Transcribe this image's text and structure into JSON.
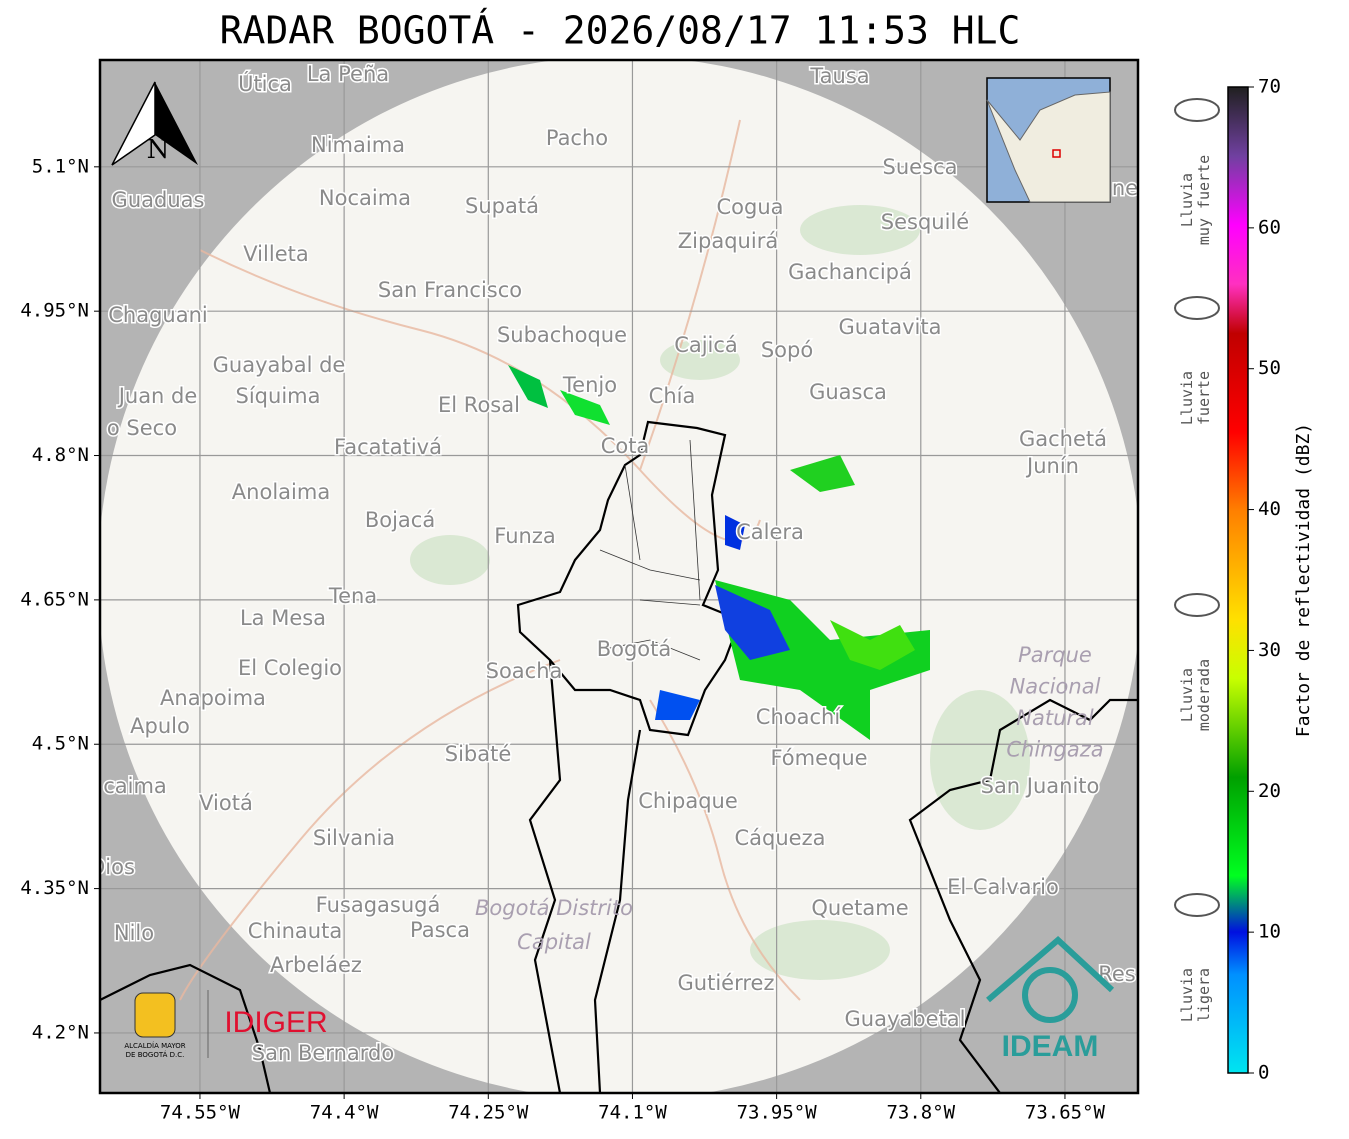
{
  "header": {
    "title": "RADAR BOGOTÁ - 2026/08/17 11:53 HLC"
  },
  "map": {
    "xlim": [
      -74.654,
      -73.574
    ],
    "ylim": [
      4.1376,
      5.211
    ],
    "xticks": [
      {
        "value": -74.55,
        "label": "74.55°W"
      },
      {
        "value": -74.4,
        "label": "74.4°W"
      },
      {
        "value": -74.25,
        "label": "74.25°W"
      },
      {
        "value": -74.1,
        "label": "74.1°W"
      },
      {
        "value": -73.95,
        "label": "73.95°W"
      },
      {
        "value": -73.8,
        "label": "73.8°W"
      },
      {
        "value": -73.65,
        "label": "73.65°W"
      }
    ],
    "yticks": [
      {
        "value": 5.1,
        "label": "5.1°N"
      },
      {
        "value": 4.95,
        "label": "4.95°N"
      },
      {
        "value": 4.8,
        "label": "4.8°N"
      },
      {
        "value": 4.65,
        "label": "4.65°N"
      },
      {
        "value": 4.5,
        "label": "4.5°N"
      },
      {
        "value": 4.35,
        "label": "4.35°N"
      },
      {
        "value": 4.2,
        "label": "4.2°N"
      }
    ],
    "grid": true,
    "places": [
      "Útica",
      "La Peña",
      "Tausa",
      "Pacho",
      "Nimaima",
      "Suesca",
      "Guaduas",
      "Nocaima",
      "Supatá",
      "Cogua",
      "Sesquilé",
      "Zipaquirá",
      "Villeta",
      "Gachancipá",
      "San Francisco",
      "Chaguani",
      "Guatavita",
      "Subachoque",
      "Cajicá",
      "Sopó",
      "Guayabal de",
      "Síquima",
      "Juan de",
      "o Seco",
      "Tenjo",
      "Chía",
      "Guasca",
      "El Rosal",
      "Cota",
      "Facatativá",
      "Gachetá",
      "Junín",
      "Anolaima",
      "Bojacá",
      "Funza",
      "Calera",
      "Tena",
      "La Mesa",
      "Bogotá",
      "El Colegio",
      "Soacha",
      "Anapoima",
      "Apulo",
      "Choachí",
      "Sibaté",
      "Fómeque",
      "San Juanito",
      "caima",
      "Viotá",
      "Chipaque",
      "Silvania",
      "Cáqueza",
      "Dios",
      "El Calvario",
      "Fusagasugá",
      "Quetame",
      "Nilo",
      "Chinauta",
      "Pasca",
      "Arbeláez",
      "Gutiérrez",
      "Res",
      "Guayabetal",
      "San Bernardo",
      "ne"
    ],
    "regions": [
      [
        "Parque",
        "Nacional",
        "Natural",
        "Chingaza"
      ],
      [
        "Bogotá Distrito",
        "Capital"
      ]
    ],
    "compass": "N"
  },
  "colorbar": {
    "label": "Factor de reflectividad (dBZ)",
    "lim": [
      0,
      70
    ],
    "ticks": [
      0,
      10,
      20,
      30,
      40,
      50,
      60,
      70
    ]
  },
  "rain_levels": [
    [
      "Lluvia",
      "muy fuerte"
    ],
    [
      "Lluvia",
      "fuerte"
    ],
    [
      "Lluvia",
      "moderada"
    ],
    [
      "Lluvia",
      "ligera"
    ]
  ],
  "logos": {
    "alcaldia": [
      "ALCALDÍA MAYOR",
      "DE BOGOTÁ D.C."
    ],
    "idiger": "IDIGER",
    "ideam": "IDEAM"
  }
}
